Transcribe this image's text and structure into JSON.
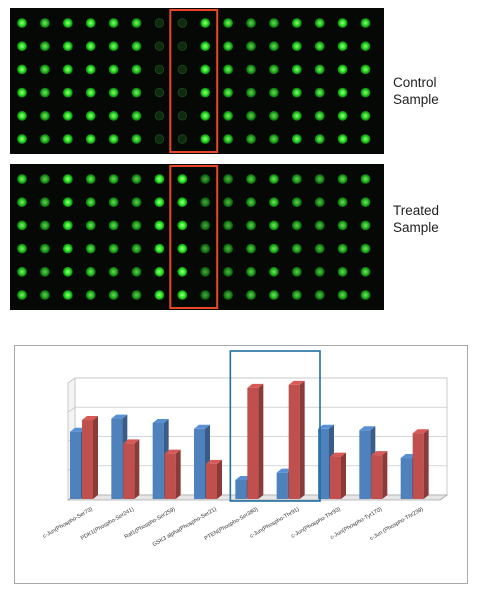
{
  "samples": {
    "control_label": "Control Sample",
    "treated_label": "Treated Sample"
  },
  "array": {
    "columns": 16,
    "rows": 6,
    "highlight_columns": [
      7,
      8
    ],
    "spot_color": "#39ff2e",
    "background_color": "#050805",
    "highlight_color": "#e8472a",
    "control_intensity": [
      0.95,
      0.8,
      0.95,
      0.95,
      0.9,
      0.85,
      0.2,
      0.2,
      0.95,
      0.85,
      0.7,
      0.75,
      0.9,
      0.85,
      0.95,
      0.9
    ],
    "treated_intensity": [
      0.85,
      0.7,
      0.95,
      0.8,
      0.75,
      0.7,
      1.0,
      1.0,
      0.55,
      0.6,
      0.7,
      0.8,
      0.7,
      0.65,
      0.75,
      0.8
    ]
  },
  "chart_data": {
    "type": "bar",
    "categories": [
      "c-Jun(Phospho-Ser73)",
      "PDK1(Phospho-Ser241)",
      "Raf1(Phospho-Ser259)",
      "GSK3 alpha(Phospho-Ser21)",
      "PTEN(Phospho-Ser380)",
      "c-Jun(Phospho-Thr91)",
      "c-Jun(Phospho-Thr93)",
      "c-Jun(Phospho-Tyr170)",
      "c-Jun (Phospho-Thr239)"
    ],
    "series": [
      {
        "values": [
          4.6,
          5.5,
          5.2,
          4.8,
          1.3,
          1.8,
          4.8,
          4.7,
          2.8
        ],
        "color": "#4f81bd"
      },
      {
        "values": [
          5.4,
          3.8,
          3.1,
          2.4,
          7.6,
          7.8,
          2.9,
          3.0,
          4.5
        ],
        "color": "#c0504d"
      }
    ],
    "ylim": [
      0,
      8
    ],
    "grid": true,
    "highlight_categories": [
      4,
      5
    ],
    "highlight_color": "#1f6fa0"
  }
}
